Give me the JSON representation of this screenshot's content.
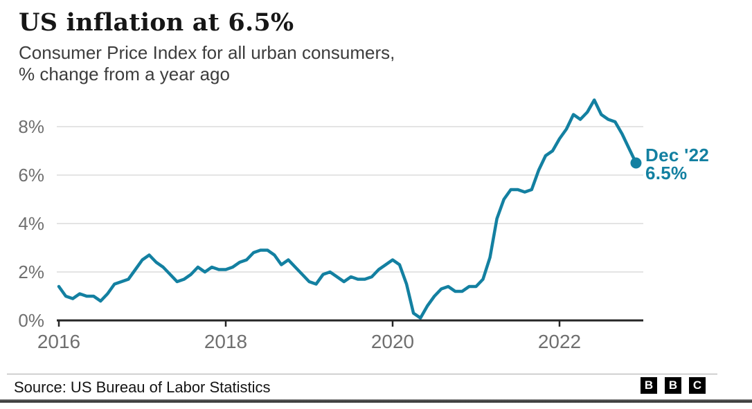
{
  "header": {
    "title": "US inflation at 6.5%",
    "subtitle_line1": "Consumer Price Index for all urban consumers,",
    "subtitle_line2": "% change from a year ago"
  },
  "annotation": {
    "line1": "Dec '22",
    "line2": "6.5%"
  },
  "footer": {
    "source": "Source: US Bureau of Labor Statistics",
    "logo_letters": [
      "B",
      "B",
      "C"
    ]
  },
  "colors": {
    "line": "#1380A1",
    "accent_text": "#1380A1",
    "grid": "#dcdcdc",
    "axis": "#262626",
    "tick_label": "#6f6f6f",
    "title_text": "#161616",
    "subtitle_text": "#3d3d3d"
  },
  "chart_data": {
    "type": "line",
    "title": "US inflation at 6.5%",
    "subtitle": "Consumer Price Index for all urban consumers, % change from a year ago",
    "x_unit": "month",
    "x_start": "2016-01",
    "x_end": "2022-12",
    "xtick_labels": [
      "2016",
      "2018",
      "2020",
      "2022"
    ],
    "xtick_month_indices": [
      0,
      24,
      48,
      72
    ],
    "ytick_labels": [
      "0%",
      "2%",
      "4%",
      "6%",
      "8%"
    ],
    "ytick_values": [
      0,
      2,
      4,
      6,
      8
    ],
    "ylim": [
      0,
      9.5
    ],
    "grid": "horizontal",
    "legend": "none",
    "series": [
      {
        "name": "CPI, % change from a year ago",
        "values": [
          1.4,
          1.0,
          0.9,
          1.1,
          1.0,
          1.0,
          0.8,
          1.1,
          1.5,
          1.6,
          1.7,
          2.1,
          2.5,
          2.7,
          2.4,
          2.2,
          1.9,
          1.6,
          1.7,
          1.9,
          2.2,
          2.0,
          2.2,
          2.1,
          2.1,
          2.2,
          2.4,
          2.5,
          2.8,
          2.9,
          2.9,
          2.7,
          2.3,
          2.5,
          2.2,
          1.9,
          1.6,
          1.5,
          1.9,
          2.0,
          1.8,
          1.6,
          1.8,
          1.7,
          1.7,
          1.8,
          2.1,
          2.3,
          2.5,
          2.3,
          1.5,
          0.3,
          0.1,
          0.6,
          1.0,
          1.3,
          1.4,
          1.2,
          1.2,
          1.4,
          1.4,
          1.7,
          2.6,
          4.2,
          5.0,
          5.4,
          5.4,
          5.3,
          5.4,
          6.2,
          6.8,
          7.0,
          7.5,
          7.9,
          8.5,
          8.3,
          8.6,
          9.1,
          8.5,
          8.3,
          8.2,
          7.7,
          7.1,
          6.5
        ]
      }
    ],
    "end_point_annotation": {
      "label": "Dec '22",
      "value_label": "6.5%",
      "month": "2022-12",
      "value": 6.5
    }
  }
}
